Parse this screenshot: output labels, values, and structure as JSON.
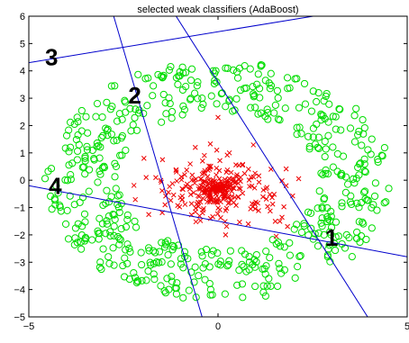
{
  "chart_data": {
    "type": "scatter",
    "title": "selected weak classifiers (AdaBoost)",
    "xlabel": "",
    "ylabel": "",
    "xlim": [
      -5,
      5
    ],
    "ylim": [
      -5,
      6
    ],
    "xticks": [
      -5,
      0,
      5
    ],
    "yticks": [
      -5,
      -4,
      -3,
      -2,
      -1,
      0,
      1,
      2,
      3,
      4,
      5,
      6
    ],
    "xtick_labels": [
      "−5",
      "0",
      "5"
    ],
    "ytick_labels": [
      "−5",
      "−4",
      "−3",
      "−2",
      "−1",
      "0",
      "1",
      "2",
      "3",
      "4",
      "5",
      "6"
    ],
    "grid": false,
    "legend": "none",
    "colors": {
      "ring": "#00dd00",
      "center": "#ee0000",
      "classifier": "#0000cc"
    },
    "series": [
      {
        "marker": "circle",
        "color": "#00dd00",
        "distribution": "annulus centered at origin, radius from about 2.5 to 4.5",
        "points": [
          [
            3.9,
            0.3
          ],
          [
            -3.9,
            0.2
          ],
          [
            0.2,
            4.1
          ],
          [
            -0.2,
            -4.2
          ],
          [
            2.8,
            2.9
          ],
          [
            -2.8,
            2.7
          ],
          [
            2.9,
            -2.8
          ],
          [
            -2.9,
            -2.8
          ],
          [
            4.2,
            -1.1
          ],
          [
            -4.3,
            -0.9
          ],
          [
            1.4,
            3.9
          ],
          [
            -1.5,
            3.8
          ],
          [
            1.2,
            -4.1
          ],
          [
            -1.3,
            -4.0
          ],
          [
            3.5,
            1.9
          ],
          [
            -3.6,
            1.8
          ],
          [
            3.4,
            -2.0
          ],
          [
            -3.5,
            -2.1
          ]
        ]
      },
      {
        "marker": "x",
        "color": "#ee0000",
        "distribution": "dense cluster centered near (0, -0.3), mostly within radius 2",
        "points": [
          [
            0.0,
            -0.3
          ],
          [
            0.5,
            0.2
          ],
          [
            -0.5,
            -0.6
          ],
          [
            1.0,
            -0.8
          ],
          [
            -1.1,
            0.3
          ],
          [
            0.3,
            1.0
          ],
          [
            -0.2,
            -1.4
          ],
          [
            1.4,
            0.4
          ],
          [
            -1.4,
            -0.9
          ],
          [
            0.8,
            -1.6
          ],
          [
            -0.6,
            1.2
          ],
          [
            1.8,
            -0.2
          ],
          [
            -1.9,
            0.1
          ],
          [
            0.0,
            2.3
          ],
          [
            0.2,
            -2.0
          ]
        ]
      }
    ],
    "lines": [
      {
        "label": "1",
        "p1": [
          -5,
          -0.2
        ],
        "p2": [
          5,
          -2.8
        ]
      },
      {
        "label": "2",
        "p1": [
          -2.8,
          6.2
        ],
        "p2": [
          -0.4,
          -5.1
        ]
      },
      {
        "label": "3",
        "p1": [
          -5,
          4.3
        ],
        "p2": [
          3.4,
          6.2
        ]
      },
      {
        "label": "4",
        "p1": [
          -1.2,
          6.2
        ],
        "p2": [
          4.0,
          -5.1
        ]
      }
    ],
    "line_labels": [
      {
        "text": "1",
        "x": 3.0,
        "y": -2.4
      },
      {
        "text": "2",
        "x": -2.2,
        "y": 2.8
      },
      {
        "text": "3",
        "x": -4.4,
        "y": 4.2
      },
      {
        "text": "4",
        "x": -4.3,
        "y": -0.5
      }
    ]
  }
}
